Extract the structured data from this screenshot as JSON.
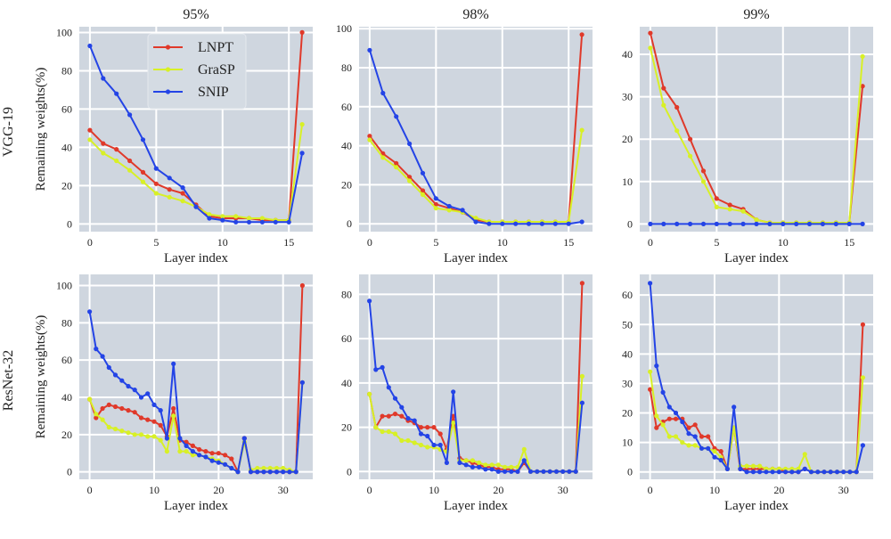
{
  "colors": {
    "LNPT": "#e0392a",
    "GraSP": "#d8f026",
    "SNIP": "#2444e6",
    "background": "#cfd6df",
    "grid": "#ffffff"
  },
  "legend": [
    "LNPT",
    "GraSP",
    "SNIP"
  ],
  "row_labels": [
    "VGG-19",
    "ResNet-32"
  ],
  "chart_data": [
    {
      "type": "line",
      "title": "95%",
      "xlabel": "Layer index",
      "ylabel": "Remaining weights(%)",
      "xlim": [
        -0.8,
        16.8
      ],
      "ylim": [
        -4,
        103
      ],
      "xticks": [
        0,
        5,
        10,
        15
      ],
      "yticks": [
        0,
        20,
        40,
        60,
        80,
        100
      ],
      "x": [
        0,
        1,
        2,
        3,
        4,
        5,
        6,
        7,
        8,
        9,
        10,
        11,
        12,
        13,
        14,
        15,
        16
      ],
      "series": [
        {
          "name": "LNPT",
          "values": [
            49,
            42,
            39,
            33,
            27,
            21,
            18,
            16,
            10,
            4,
            3,
            3,
            3,
            2,
            2,
            2,
            100
          ]
        },
        {
          "name": "GraSP",
          "values": [
            44,
            37,
            33,
            28,
            22,
            16,
            14,
            12,
            9,
            5,
            4,
            4,
            3,
            3,
            2,
            2,
            52
          ]
        },
        {
          "name": "SNIP",
          "values": [
            93,
            76,
            68,
            57,
            44,
            29,
            24,
            19,
            9,
            3,
            2,
            1,
            1,
            1,
            1,
            1,
            37
          ]
        }
      ]
    },
    {
      "type": "line",
      "title": "98%",
      "xlabel": "Layer index",
      "ylabel": "",
      "xlim": [
        -0.8,
        16.8
      ],
      "ylim": [
        -4,
        101
      ],
      "xticks": [
        0,
        5,
        10,
        15
      ],
      "yticks": [
        0,
        20,
        40,
        60,
        80,
        100
      ],
      "x": [
        0,
        1,
        2,
        3,
        4,
        5,
        6,
        7,
        8,
        9,
        10,
        11,
        12,
        13,
        14,
        15,
        16
      ],
      "series": [
        {
          "name": "LNPT",
          "values": [
            45,
            36,
            31,
            24,
            17,
            10,
            8,
            6,
            2,
            1,
            1,
            1,
            1,
            1,
            1,
            1,
            97
          ]
        },
        {
          "name": "GraSP",
          "values": [
            43,
            34,
            29,
            22,
            15,
            8,
            7,
            6,
            3,
            1,
            1,
            1,
            1,
            1,
            1,
            1,
            48
          ]
        },
        {
          "name": "SNIP",
          "values": [
            89,
            67,
            55,
            41,
            26,
            13,
            9,
            7,
            1,
            0,
            0,
            0,
            0,
            0,
            0,
            0,
            1
          ]
        }
      ]
    },
    {
      "type": "line",
      "title": "99%",
      "xlabel": "Layer index",
      "ylabel": "",
      "xlim": [
        -0.8,
        16.8
      ],
      "ylim": [
        -1.8,
        46.5
      ],
      "xticks": [
        0,
        5,
        10,
        15
      ],
      "yticks": [
        0,
        10,
        20,
        30,
        40
      ],
      "x": [
        0,
        1,
        2,
        3,
        4,
        5,
        6,
        7,
        8,
        9,
        10,
        11,
        12,
        13,
        14,
        15,
        16
      ],
      "series": [
        {
          "name": "LNPT",
          "values": [
            45,
            32,
            27.5,
            20,
            12.5,
            6,
            4.5,
            3.5,
            1,
            0.3,
            0.3,
            0.3,
            0.3,
            0.3,
            0.3,
            0.3,
            32.5
          ]
        },
        {
          "name": "GraSP",
          "values": [
            41.5,
            28,
            22,
            16,
            10,
            4,
            3.5,
            3,
            1,
            0.3,
            0.3,
            0.3,
            0.3,
            0.3,
            0.3,
            0.3,
            39.5
          ]
        },
        {
          "name": "SNIP",
          "values": [
            0,
            0,
            0,
            0,
            0,
            0,
            0,
            0,
            0,
            0,
            0,
            0,
            0,
            0,
            0,
            0,
            0
          ]
        }
      ]
    },
    {
      "type": "line",
      "title": "",
      "xlabel": "Layer index",
      "ylabel": "Remaining weights(%)",
      "xlim": [
        -1.6,
        34.6
      ],
      "ylim": [
        -4,
        106
      ],
      "xticks": [
        0,
        10,
        20,
        30
      ],
      "yticks": [
        0,
        20,
        40,
        60,
        80,
        100
      ],
      "x": [
        0,
        1,
        2,
        3,
        4,
        5,
        6,
        7,
        8,
        9,
        10,
        11,
        12,
        13,
        14,
        15,
        16,
        17,
        18,
        19,
        20,
        21,
        22,
        23,
        24,
        25,
        26,
        27,
        28,
        29,
        30,
        31,
        32,
        33
      ],
      "series": [
        {
          "name": "LNPT",
          "values": [
            39,
            29,
            34,
            36,
            35,
            34,
            33,
            32,
            29,
            28,
            27,
            25,
            19,
            34,
            17,
            16,
            14,
            12,
            11,
            10,
            10,
            9,
            7,
            0,
            18,
            0,
            0,
            0,
            0,
            0,
            0,
            0,
            0,
            100
          ]
        },
        {
          "name": "GraSP",
          "values": [
            39,
            31,
            28,
            24,
            23,
            22,
            21,
            20,
            20,
            19,
            19,
            17,
            11,
            30,
            11,
            11,
            9,
            9,
            8,
            7,
            6,
            4,
            2,
            0,
            16,
            1,
            2,
            2,
            2,
            2,
            2,
            1,
            0,
            48
          ]
        },
        {
          "name": "SNIP",
          "values": [
            86,
            66,
            62,
            56,
            52,
            49,
            46,
            44,
            40,
            42,
            36,
            33,
            18,
            58,
            18,
            14,
            11,
            9,
            8,
            6,
            5,
            4,
            2,
            0,
            18,
            0,
            0,
            0,
            0,
            0,
            0,
            0,
            0,
            48
          ]
        }
      ]
    },
    {
      "type": "line",
      "title": "",
      "xlabel": "Layer index",
      "ylabel": "",
      "xlim": [
        -1.6,
        34.6
      ],
      "ylim": [
        -3.5,
        89
      ],
      "xticks": [
        0,
        10,
        20,
        30
      ],
      "yticks": [
        0,
        20,
        40,
        60,
        80
      ],
      "x": [
        0,
        1,
        2,
        3,
        4,
        5,
        6,
        7,
        8,
        9,
        10,
        11,
        12,
        13,
        14,
        15,
        16,
        17,
        18,
        19,
        20,
        21,
        22,
        23,
        24,
        25,
        26,
        27,
        28,
        29,
        30,
        31,
        32,
        33
      ],
      "series": [
        {
          "name": "LNPT",
          "values": [
            35,
            20,
            25,
            25,
            26,
            25,
            23,
            22,
            20,
            20,
            20,
            17,
            10,
            25,
            6,
            5,
            4,
            3,
            2,
            2,
            1,
            1,
            1,
            0,
            4,
            0,
            0,
            0,
            0,
            0,
            0,
            0,
            0,
            85
          ]
        },
        {
          "name": "GraSP",
          "values": [
            35,
            20,
            18,
            18,
            17,
            14,
            14,
            13,
            12,
            11,
            11,
            10,
            9,
            22,
            5,
            5,
            5,
            4,
            3,
            3,
            3,
            2,
            2,
            2,
            10,
            0,
            0,
            0,
            0,
            0,
            0,
            0,
            0,
            43
          ]
        },
        {
          "name": "SNIP",
          "values": [
            77,
            46,
            47,
            38,
            33,
            29,
            24,
            23,
            17,
            16,
            12,
            12,
            4,
            36,
            4,
            3,
            2,
            2,
            1,
            1,
            0,
            0,
            0,
            0,
            5,
            0,
            0,
            0,
            0,
            0,
            0,
            0,
            0,
            31
          ]
        }
      ]
    },
    {
      "type": "line",
      "title": "",
      "xlabel": "Layer index",
      "ylabel": "",
      "xlim": [
        -1.6,
        34.6
      ],
      "ylim": [
        -2.5,
        67
      ],
      "xticks": [
        0,
        10,
        20,
        30
      ],
      "yticks": [
        0,
        10,
        20,
        30,
        40,
        50,
        60
      ],
      "x": [
        0,
        1,
        2,
        3,
        4,
        5,
        6,
        7,
        8,
        9,
        10,
        11,
        12,
        13,
        14,
        15,
        16,
        17,
        18,
        19,
        20,
        21,
        22,
        23,
        24,
        25,
        26,
        27,
        28,
        29,
        30,
        31,
        32,
        33
      ],
      "series": [
        {
          "name": "LNPT",
          "values": [
            28,
            15,
            17,
            18,
            18,
            18,
            15,
            16,
            12,
            12,
            8,
            7,
            1,
            15,
            1,
            1,
            1,
            1,
            1,
            1,
            1,
            0,
            0,
            0,
            1,
            0,
            0,
            0,
            0,
            0,
            0,
            0,
            0,
            50
          ]
        },
        {
          "name": "GraSP",
          "values": [
            34,
            19,
            16,
            12,
            12,
            10,
            9,
            9,
            8,
            8,
            7,
            5,
            1,
            15,
            2,
            2,
            2,
            2,
            1,
            1,
            1,
            1,
            1,
            1,
            6,
            0,
            0,
            0,
            0,
            0,
            0,
            0,
            0,
            32
          ]
        },
        {
          "name": "SNIP",
          "values": [
            64,
            36,
            27,
            22,
            20,
            17,
            13,
            12,
            8,
            8,
            5,
            4,
            1,
            22,
            1,
            0,
            0,
            0,
            0,
            0,
            0,
            0,
            0,
            0,
            1,
            0,
            0,
            0,
            0,
            0,
            0,
            0,
            0,
            9
          ]
        }
      ]
    }
  ]
}
